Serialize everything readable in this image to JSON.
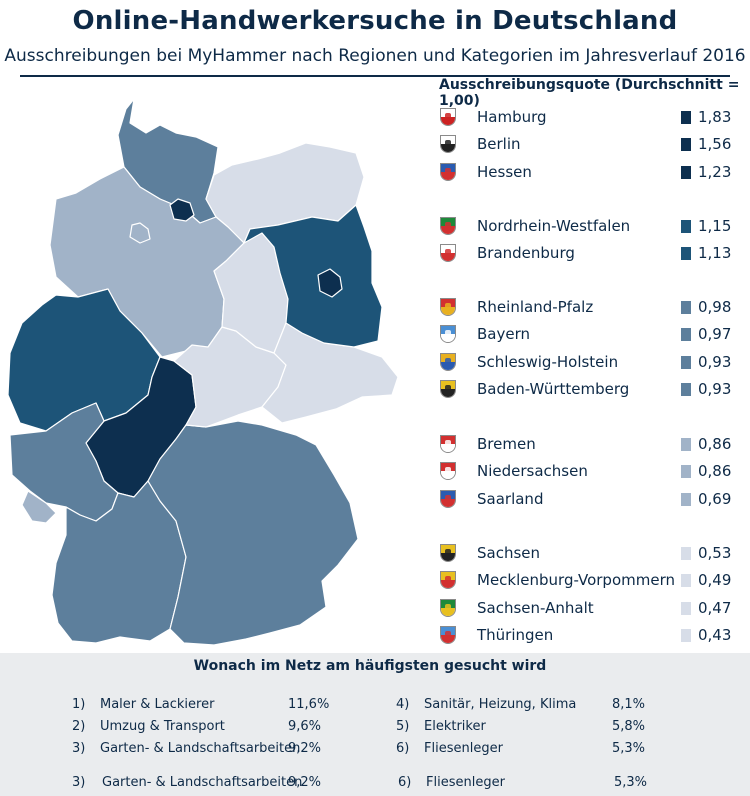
{
  "header": {
    "title": "Online-Handwerkersuche in Deutschland",
    "subtitle": "Ausschreibungen bei MyHammer nach Regionen und Kategorien im Jahresverlauf 2016"
  },
  "chart_data": [
    {
      "type": "choropleth",
      "title": "Ausschreibungsquote (Durchschnitt = 1,00)",
      "classes": [
        {
          "color": "#0d2f4f",
          "states": [
            "Hamburg",
            "Berlin",
            "Hessen"
          ]
        },
        {
          "color": "#1d5478",
          "states": [
            "Nordrhein-Westfalen",
            "Brandenburg"
          ]
        },
        {
          "color": "#5d7f9c",
          "states": [
            "Rheinland-Pfalz",
            "Bayern",
            "Schleswig-Holstein",
            "Baden-Württemberg"
          ]
        },
        {
          "color": "#a1b3c8",
          "states": [
            "Bremen",
            "Niedersachsen",
            "Saarland"
          ]
        },
        {
          "color": "#d7dde8",
          "states": [
            "Sachsen",
            "Mecklenburg-Vorpommern",
            "Sachsen-Anhalt",
            "Thüringen"
          ]
        }
      ],
      "groups": [
        [
          {
            "name": "Hamburg",
            "value": "1,83",
            "class": 0,
            "crest": [
              "#ffffff",
              "#cc2222"
            ]
          },
          {
            "name": "Berlin",
            "value": "1,56",
            "class": 0,
            "crest": [
              "#ffffff",
              "#222222"
            ]
          },
          {
            "name": "Hessen",
            "value": "1,23",
            "class": 0,
            "crest": [
              "#2a5bb0",
              "#d23030"
            ]
          }
        ],
        [
          {
            "name": "Nordrhein-Westfalen",
            "value": "1,15",
            "class": 1,
            "crest": [
              "#1e8a3a",
              "#d23030"
            ]
          },
          {
            "name": "Brandenburg",
            "value": "1,13",
            "class": 1,
            "crest": [
              "#ffffff",
              "#d23030"
            ]
          }
        ],
        [
          {
            "name": "Rheinland-Pfalz",
            "value": "0,98",
            "class": 2,
            "crest": [
              "#d23030",
              "#e8b020"
            ]
          },
          {
            "name": "Bayern",
            "value": "0,97",
            "class": 2,
            "crest": [
              "#4a8fd4",
              "#ffffff"
            ]
          },
          {
            "name": "Schleswig-Holstein",
            "value": "0,93",
            "class": 2,
            "crest": [
              "#e8b020",
              "#2a5bb0"
            ]
          },
          {
            "name": "Baden-Württemberg",
            "value": "0,93",
            "class": 2,
            "crest": [
              "#e8c020",
              "#222222"
            ]
          }
        ],
        [
          {
            "name": "Bremen",
            "value": "0,86",
            "class": 3,
            "crest": [
              "#d23030",
              "#ffffff"
            ]
          },
          {
            "name": "Niedersachsen",
            "value": "0,86",
            "class": 3,
            "crest": [
              "#d23030",
              "#ffffff"
            ]
          },
          {
            "name": "Saarland",
            "value": "0,69",
            "class": 3,
            "crest": [
              "#2a5bb0",
              "#d23030"
            ]
          }
        ],
        [
          {
            "name": "Sachsen",
            "value": "0,53",
            "class": 4,
            "crest": [
              "#e8c020",
              "#222222"
            ]
          },
          {
            "name": "Mecklenburg-Vorpommern",
            "value": "0,49",
            "class": 4,
            "crest": [
              "#e8c020",
              "#d23030"
            ]
          },
          {
            "name": "Sachsen-Anhalt",
            "value": "0,47",
            "class": 4,
            "crest": [
              "#1e8a3a",
              "#e8c020"
            ]
          },
          {
            "name": "Thüringen",
            "value": "0,43",
            "class": 4,
            "crest": [
              "#4a8fd4",
              "#d23030"
            ]
          }
        ]
      ]
    },
    {
      "type": "table",
      "title": "Wonach im Netz am häufigsten gesucht wird",
      "columns": [
        [
          {
            "rank": "1)",
            "label": "Maler & Lackierer",
            "value": "11,6%"
          },
          {
            "rank": "2)",
            "label": "Umzug & Transport",
            "value": "9,6%"
          },
          {
            "rank": "3)",
            "label": "Garten- & Landschaftsarbeiten",
            "value": "9,2%"
          }
        ],
        [
          {
            "rank": "4)",
            "label": "Sanitär, Heizung, Klima",
            "value": "8,1%"
          },
          {
            "rank": "5)",
            "label": "Elektriker",
            "value": "5,8%"
          },
          {
            "rank": "6)",
            "label": "Fliesenleger",
            "value": "5,3%"
          }
        ]
      ],
      "extra_row": [
        {
          "rank": "3)",
          "label": "Garten- & Landschaftsarbeiten",
          "value": "9,2%"
        },
        {
          "rank": "6)",
          "label": "Fliesenleger",
          "value": "5,3%"
        }
      ]
    }
  ]
}
